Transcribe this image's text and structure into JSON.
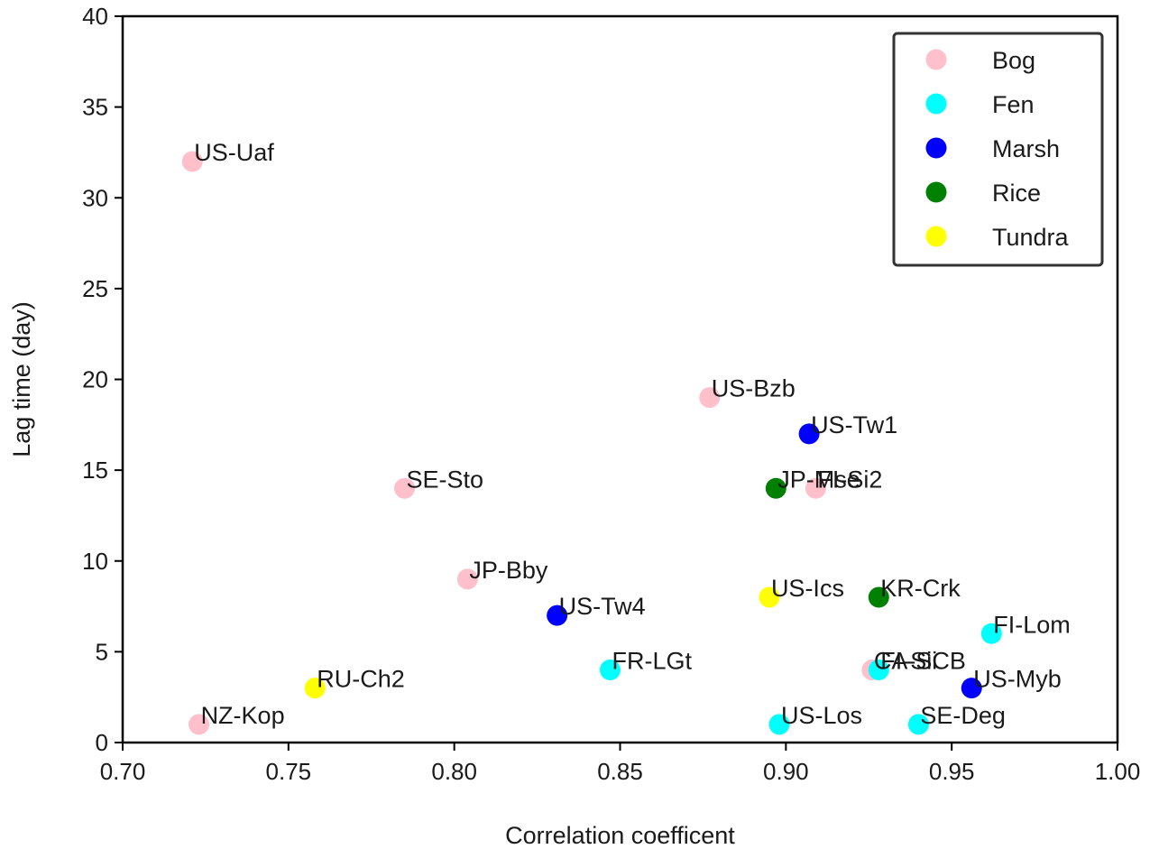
{
  "chart_data": {
    "type": "scatter",
    "title": "",
    "xlabel": "Correlation coefficent",
    "ylabel": "Lag time (day)",
    "xlim": [
      0.7,
      1.0
    ],
    "ylim": [
      0,
      40
    ],
    "xticks": [
      "0.70",
      "0.75",
      "0.80",
      "0.85",
      "0.90",
      "0.95",
      "1.00"
    ],
    "yticks": [
      "0",
      "5",
      "10",
      "15",
      "20",
      "25",
      "30",
      "35",
      "40"
    ],
    "grid": false,
    "legend_position": "top-right",
    "categories": [
      {
        "name": "Bog",
        "color": "#ffc0cb"
      },
      {
        "name": "Fen",
        "color": "#00ffff"
      },
      {
        "name": "Marsh",
        "color": "#0000ff"
      },
      {
        "name": "Rice",
        "color": "#008000"
      },
      {
        "name": "Tundra",
        "color": "#ffff00"
      }
    ],
    "points": [
      {
        "label": "US-Uaf",
        "category": "Bog",
        "x": 0.721,
        "y": 32
      },
      {
        "label": "NZ-Kop",
        "category": "Bog",
        "x": 0.723,
        "y": 1
      },
      {
        "label": "SE-Sto",
        "category": "Bog",
        "x": 0.785,
        "y": 14
      },
      {
        "label": "JP-Bby",
        "category": "Bog",
        "x": 0.804,
        "y": 9
      },
      {
        "label": "US-Bzb",
        "category": "Bog",
        "x": 0.877,
        "y": 19
      },
      {
        "label": "FI-Si2",
        "category": "Bog",
        "x": 0.909,
        "y": 14
      },
      {
        "label": "CA-SCB",
        "category": "Bog",
        "x": 0.926,
        "y": 4
      },
      {
        "label": "FR-LGt",
        "category": "Fen",
        "x": 0.847,
        "y": 4
      },
      {
        "label": "US-Los",
        "category": "Fen",
        "x": 0.898,
        "y": 1
      },
      {
        "label": "FI-Sii",
        "category": "Fen",
        "x": 0.928,
        "y": 4
      },
      {
        "label": "SE-Deg",
        "category": "Fen",
        "x": 0.94,
        "y": 1
      },
      {
        "label": "FI-Lom",
        "category": "Fen",
        "x": 0.962,
        "y": 6
      },
      {
        "label": "US-Tw4",
        "category": "Marsh",
        "x": 0.831,
        "y": 7
      },
      {
        "label": "US-Tw1",
        "category": "Marsh",
        "x": 0.907,
        "y": 17
      },
      {
        "label": "US-Myb",
        "category": "Marsh",
        "x": 0.956,
        "y": 3
      },
      {
        "label": "JP-Mse",
        "category": "Rice",
        "x": 0.897,
        "y": 14
      },
      {
        "label": "KR-Crk",
        "category": "Rice",
        "x": 0.928,
        "y": 8
      },
      {
        "label": "RU-Ch2",
        "category": "Tundra",
        "x": 0.758,
        "y": 3
      },
      {
        "label": "US-Ics",
        "category": "Tundra",
        "x": 0.895,
        "y": 8
      }
    ]
  }
}
